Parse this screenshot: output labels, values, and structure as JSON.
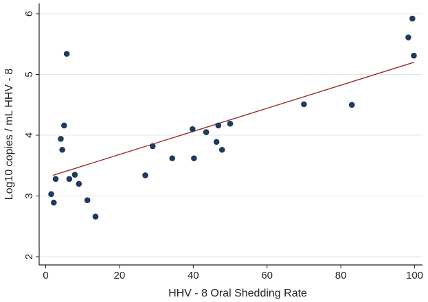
{
  "chart_data": {
    "type": "scatter",
    "xlabel": "HHV - 8 Oral Shedding Rate",
    "ylabel": "Log10 copies / mL HHV - 8",
    "xlim": [
      0,
      100
    ],
    "ylim": [
      2,
      6
    ],
    "x_ticks": [
      0,
      20,
      40,
      60,
      80,
      100
    ],
    "y_ticks": [
      2,
      3,
      4,
      5,
      6
    ],
    "grid": "horizontal",
    "points": [
      {
        "x": 1.5,
        "y": 3.03
      },
      {
        "x": 2.2,
        "y": 2.89
      },
      {
        "x": 2.7,
        "y": 3.28
      },
      {
        "x": 4.1,
        "y": 3.94
      },
      {
        "x": 4.5,
        "y": 3.76
      },
      {
        "x": 5.0,
        "y": 4.16
      },
      {
        "x": 5.7,
        "y": 5.34
      },
      {
        "x": 6.4,
        "y": 3.28
      },
      {
        "x": 7.9,
        "y": 3.35
      },
      {
        "x": 9.0,
        "y": 3.2
      },
      {
        "x": 11.3,
        "y": 2.93
      },
      {
        "x": 13.5,
        "y": 2.66
      },
      {
        "x": 27.0,
        "y": 3.34
      },
      {
        "x": 29.0,
        "y": 3.82
      },
      {
        "x": 34.3,
        "y": 3.62
      },
      {
        "x": 39.8,
        "y": 4.1
      },
      {
        "x": 40.2,
        "y": 3.62
      },
      {
        "x": 43.5,
        "y": 4.05
      },
      {
        "x": 46.3,
        "y": 3.89
      },
      {
        "x": 46.8,
        "y": 4.16
      },
      {
        "x": 47.8,
        "y": 3.76
      },
      {
        "x": 50.0,
        "y": 4.19
      },
      {
        "x": 70.0,
        "y": 4.51
      },
      {
        "x": 83.0,
        "y": 4.5
      },
      {
        "x": 98.3,
        "y": 5.61
      },
      {
        "x": 99.4,
        "y": 5.92
      },
      {
        "x": 99.8,
        "y": 5.31
      }
    ],
    "fit_line": {
      "x": [
        2,
        99.8
      ],
      "y": [
        3.34,
        5.2
      ]
    },
    "colors": {
      "points": "#1f3a5c",
      "fit_line": "#9a2a2a",
      "grid": "#e6e6e6",
      "axis": "#222222"
    }
  }
}
